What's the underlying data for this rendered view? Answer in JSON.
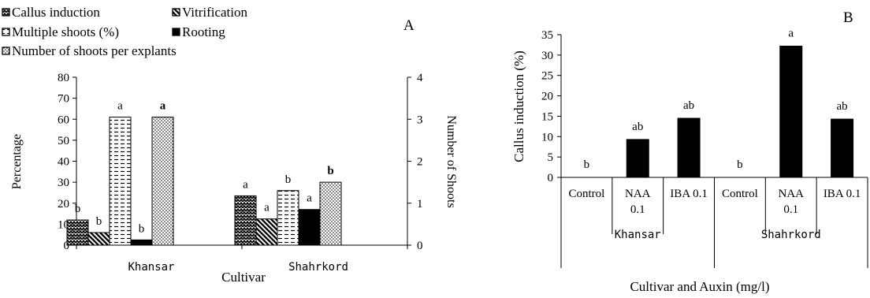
{
  "chart_data": [
    {
      "panel_label": "A",
      "type": "bar",
      "categories": [
        "Khansar",
        "Shahrkord"
      ],
      "xlabel": "Cultivar",
      "ylabel": "Percentage",
      "y2label": "Number of Shoots",
      "ylim": [
        0,
        80
      ],
      "y2lim": [
        0,
        4
      ],
      "yticks": [
        "0",
        "10",
        "20",
        "30",
        "40",
        "50",
        "60",
        "70",
        "80"
      ],
      "y2ticks": [
        "0",
        "1",
        "2",
        "3",
        "4"
      ],
      "legend_position": "top-left",
      "series": [
        {
          "name": "Callus induction",
          "axis": "left",
          "pattern": "zigzag",
          "values": [
            12,
            23.5
          ],
          "letters": [
            "b",
            "a"
          ]
        },
        {
          "name": "Vitrification",
          "axis": "left",
          "pattern": "diag",
          "values": [
            6,
            12.5
          ],
          "letters": [
            "b",
            "a"
          ]
        },
        {
          "name": "Multiple shoots (%)",
          "axis": "left",
          "pattern": "dash",
          "values": [
            61,
            26
          ],
          "letters": [
            "a",
            "b"
          ]
        },
        {
          "name": "Rooting",
          "axis": "left",
          "pattern": "solid",
          "values": [
            2.5,
            17
          ],
          "letters": [
            "b",
            "a"
          ]
        },
        {
          "name": "Number of shoots per explants",
          "axis": "right",
          "pattern": "dots",
          "values": [
            3.05,
            1.5
          ],
          "letters": [
            "a",
            "b"
          ]
        }
      ]
    },
    {
      "panel_label": "B",
      "type": "bar",
      "categories": [
        "Control",
        "NAA 0.1",
        "IBA 0.1",
        "Control",
        "NAA 0.1",
        "IBA 0.1"
      ],
      "groups": [
        "Khansar",
        "Shahrkord"
      ],
      "xlabel": "Cultivar and Auxin (mg/l)",
      "ylabel": "Callus induction (%)",
      "ylim": [
        0,
        35
      ],
      "yticks": [
        "0",
        "5",
        "10",
        "15",
        "20",
        "25",
        "30",
        "35"
      ],
      "values": [
        0,
        9.3,
        14.5,
        0,
        32.2,
        14.3
      ],
      "letters": [
        "b",
        "ab",
        "ab",
        "b",
        "a",
        "ab"
      ]
    }
  ]
}
